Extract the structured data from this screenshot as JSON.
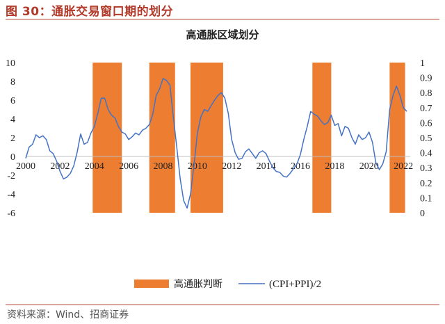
{
  "figure": {
    "title": "图 30：通胀交易窗口期的划分",
    "source": "资料来源：Wind、招商证券"
  },
  "colors": {
    "accent": "#b23a2a",
    "band": "#ED7D31",
    "line": "#4472C4"
  },
  "chart_data": {
    "type": "line",
    "title": "高通胀区域划分",
    "x": {
      "min": 2000,
      "max": 2022.4,
      "ticks": [
        2000,
        2002,
        2004,
        2006,
        2008,
        2010,
        2012,
        2014,
        2016,
        2018,
        2020,
        2022
      ]
    },
    "y_left": {
      "min": -6,
      "max": 10,
      "ticks": [
        -6,
        -4,
        -2,
        0,
        2,
        4,
        6,
        8,
        10
      ]
    },
    "y_right": {
      "min": 0,
      "max": 1,
      "ticks": [
        "0",
        "0.1",
        "0.2",
        "0.3",
        "0.4",
        "0.5",
        "0.6",
        "0.7",
        "0.8",
        "0.9",
        "1"
      ]
    },
    "grid": false,
    "legend": "bottom",
    "legend_labels": {
      "bands": "高通胀判断",
      "line": "(CPI+PPI)/2"
    },
    "bands": [
      {
        "start": 2003.9,
        "end": 2005.6
      },
      {
        "start": 2007.2,
        "end": 2008.7
      },
      {
        "start": 2009.6,
        "end": 2011.5
      },
      {
        "start": 2016.7,
        "end": 2017.8
      },
      {
        "start": 2021.2,
        "end": 2022.1
      }
    ],
    "series": [
      {
        "name": "(CPI+PPI)/2",
        "x": [
          2000.0,
          2000.2,
          2000.4,
          2000.6,
          2000.8,
          2001.0,
          2001.2,
          2001.4,
          2001.6,
          2001.8,
          2002.0,
          2002.2,
          2002.4,
          2002.6,
          2002.8,
          2003.0,
          2003.2,
          2003.4,
          2003.6,
          2003.8,
          2004.0,
          2004.2,
          2004.4,
          2004.6,
          2004.8,
          2005.0,
          2005.2,
          2005.4,
          2005.6,
          2005.8,
          2006.0,
          2006.2,
          2006.4,
          2006.6,
          2006.8,
          2007.0,
          2007.2,
          2007.4,
          2007.6,
          2007.8,
          2008.0,
          2008.2,
          2008.4,
          2008.6,
          2008.8,
          2009.0,
          2009.2,
          2009.4,
          2009.6,
          2009.8,
          2010.0,
          2010.2,
          2010.4,
          2010.6,
          2010.8,
          2011.0,
          2011.2,
          2011.4,
          2011.6,
          2011.8,
          2012.0,
          2012.2,
          2012.4,
          2012.6,
          2012.8,
          2013.0,
          2013.2,
          2013.4,
          2013.6,
          2013.8,
          2014.0,
          2014.2,
          2014.4,
          2014.6,
          2014.8,
          2015.0,
          2015.2,
          2015.4,
          2015.6,
          2015.8,
          2016.0,
          2016.2,
          2016.4,
          2016.6,
          2016.8,
          2017.0,
          2017.2,
          2017.4,
          2017.6,
          2017.8,
          2018.0,
          2018.2,
          2018.4,
          2018.6,
          2018.8,
          2019.0,
          2019.2,
          2019.4,
          2019.6,
          2019.8,
          2020.0,
          2020.2,
          2020.4,
          2020.6,
          2020.8,
          2021.0,
          2021.2,
          2021.4,
          2021.6,
          2021.8,
          2022.0,
          2022.2
        ],
        "values": [
          -0.2,
          1.0,
          1.3,
          2.3,
          2.0,
          2.2,
          1.8,
          0.6,
          0.3,
          -0.5,
          -1.6,
          -2.4,
          -2.2,
          -1.8,
          -1.0,
          0.5,
          2.4,
          1.3,
          1.5,
          2.5,
          3.2,
          4.6,
          6.2,
          6.2,
          5.0,
          4.4,
          4.1,
          3.2,
          2.6,
          2.4,
          1.8,
          2.1,
          2.5,
          2.3,
          2.8,
          3.0,
          3.4,
          4.5,
          6.5,
          7.2,
          8.3,
          8.1,
          7.6,
          4.2,
          1.0,
          -2.4,
          -4.7,
          -5.5,
          -4.0,
          -1.0,
          2.5,
          4.2,
          5.0,
          4.8,
          5.4,
          6.0,
          6.5,
          6.8,
          6.2,
          4.6,
          1.8,
          0.4,
          -0.3,
          -0.2,
          0.5,
          0.8,
          0.3,
          -0.2,
          0.4,
          0.6,
          0.3,
          -0.5,
          -1.2,
          -1.6,
          -1.7,
          -2.1,
          -2.2,
          -1.8,
          -1.3,
          -0.8,
          0.2,
          1.8,
          3.2,
          4.8,
          4.5,
          4.3,
          3.8,
          3.4,
          3.6,
          4.4,
          3.3,
          3.5,
          2.2,
          3.2,
          3.0,
          2.0,
          1.3,
          2.3,
          1.8,
          2.0,
          2.6,
          1.5,
          -0.7,
          -1.4,
          -0.8,
          0.5,
          5.0,
          6.5,
          7.5,
          6.5,
          5.2,
          4.8
        ]
      }
    ]
  }
}
